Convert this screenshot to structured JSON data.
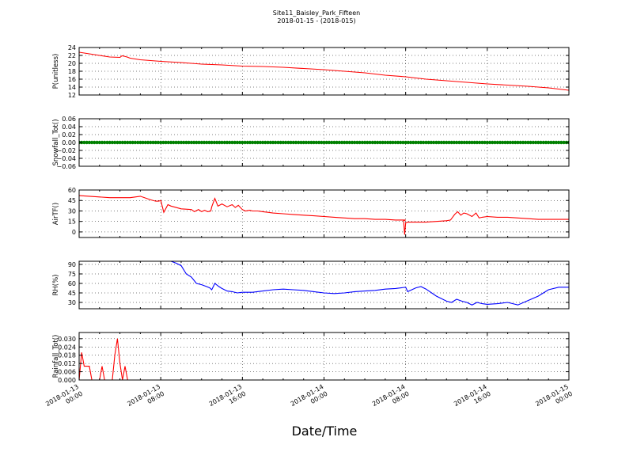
{
  "title": "Site11_Baisley_Park_Fifteen",
  "subtitle": "2018-01-15 - (2018-015)",
  "xlabel": "Date/Time",
  "x_ticks": [
    {
      "l1": "2018-01-13",
      "l2": "00:00"
    },
    {
      "l1": "2018-01-13",
      "l2": "08:00"
    },
    {
      "l1": "2018-01-13",
      "l2": "16:00"
    },
    {
      "l1": "2018-01-14",
      "l2": "00:00"
    },
    {
      "l1": "2018-01-14",
      "l2": "08:00"
    },
    {
      "l1": "2018-01-14",
      "l2": "16:00"
    },
    {
      "l1": "2018-01-15",
      "l2": "00:00"
    }
  ],
  "chart_data": [
    {
      "type": "line",
      "ylabel": "P(unitless)",
      "ylim": [
        12,
        24
      ],
      "yticks": [
        12,
        14,
        16,
        18,
        20,
        22,
        24
      ],
      "ytick_labels": [
        "12",
        "14",
        "16",
        "18",
        "20",
        "22",
        "24"
      ],
      "color": "#ff0000",
      "grid": true,
      "x": [
        0,
        1,
        2,
        3,
        4,
        4.2,
        4.4,
        4.7,
        5,
        6,
        8,
        10,
        12,
        14,
        16,
        18,
        20,
        22,
        24,
        26,
        28,
        30,
        32,
        34,
        36,
        38,
        40,
        42,
        44,
        46,
        48
      ],
      "y": [
        22.8,
        22.4,
        22.0,
        21.6,
        21.5,
        21.9,
        21.8,
        21.6,
        21.3,
        20.9,
        20.5,
        20.2,
        19.8,
        19.6,
        19.3,
        19.2,
        19.0,
        18.7,
        18.4,
        18.0,
        17.6,
        17.0,
        16.6,
        16.0,
        15.6,
        15.2,
        14.8,
        14.5,
        14.2,
        13.8,
        13.2
      ]
    },
    {
      "type": "scatter",
      "ylabel": "Snowfall_Tot()",
      "ylim": [
        -0.06,
        0.06
      ],
      "yticks": [
        -0.06,
        -0.04,
        -0.02,
        0,
        0.02,
        0.04,
        0.06
      ],
      "ytick_labels": [
        "−0.06",
        "−0.04",
        "−0.02",
        "0.00",
        "0.02",
        "0.04",
        "0.06"
      ],
      "color": "#008000",
      "grid": true,
      "note": "all values 0.00 every 15 minutes",
      "x_start": 0,
      "x_end": 48,
      "x_step": 0.25,
      "value": 0
    },
    {
      "type": "line",
      "ylabel": "AirTF()",
      "ylim": [
        -8,
        60
      ],
      "yticks": [
        0,
        15,
        30,
        45,
        60
      ],
      "ytick_labels": [
        "0",
        "15",
        "30",
        "45",
        "60"
      ],
      "color": "#ff0000",
      "grid": true,
      "x": [
        0,
        1,
        2,
        3,
        4,
        5,
        5.5,
        6,
        7,
        7.5,
        7.8,
        8,
        8.3,
        8.7,
        9,
        10,
        11,
        11.3,
        11.7,
        12,
        12.3,
        12.6,
        12.9,
        13,
        13.3,
        13.6,
        14,
        14.5,
        15,
        15.3,
        15.6,
        16,
        16.3,
        16.7,
        17,
        17.5,
        18,
        18.5,
        19,
        20,
        21,
        22,
        23,
        24,
        25,
        26,
        27,
        28,
        29,
        30,
        31,
        32,
        31.8,
        31.9,
        32.0,
        32.2,
        33,
        34,
        35,
        36,
        36.4,
        36.8,
        37.1,
        37.4,
        37.7,
        38,
        38.5,
        38.9,
        39.2,
        39.5,
        40,
        41,
        42,
        43,
        44,
        45,
        46,
        47,
        48
      ],
      "y": [
        52,
        51,
        50,
        49,
        49,
        49,
        50,
        51,
        46,
        44,
        44,
        45,
        28,
        39,
        37,
        33,
        32,
        29,
        32,
        29,
        31,
        29,
        30,
        36,
        48,
        37,
        40,
        36,
        39,
        35,
        38,
        32,
        30,
        31,
        30,
        30,
        29,
        28,
        27,
        26,
        25,
        24,
        23,
        22,
        21,
        20,
        19,
        19,
        18,
        18,
        17,
        17,
        16,
        -4,
        13,
        14,
        14,
        14,
        15,
        16,
        17,
        25,
        29,
        24,
        27,
        26,
        22,
        27,
        20,
        21,
        22,
        21,
        21,
        20,
        19,
        18,
        18,
        18,
        18
      ]
    },
    {
      "type": "line",
      "ylabel": "RH(%)",
      "ylim": [
        20,
        95
      ],
      "yticks": [
        30,
        45,
        60,
        75,
        90
      ],
      "ytick_labels": [
        "30",
        "45",
        "60",
        "75",
        "90"
      ],
      "color": "#0000ff",
      "grid": true,
      "x": [
        7.9,
        8.5,
        9,
        9.5,
        10,
        10.5,
        11,
        11.5,
        12,
        12.5,
        12.8,
        13,
        13.3,
        13.7,
        14,
        14.5,
        15,
        15.5,
        16,
        17,
        18,
        19,
        20,
        21,
        22,
        23,
        24,
        25,
        26,
        27,
        28,
        29,
        30,
        31,
        32,
        32.2,
        33,
        33.5,
        34,
        35,
        36,
        36.5,
        37,
        37.5,
        38,
        38.5,
        39,
        39.5,
        40,
        41,
        42,
        43,
        44,
        45,
        46,
        47,
        48
      ],
      "y": [
        95,
        95,
        95,
        92,
        88,
        75,
        70,
        60,
        58,
        55,
        53,
        50,
        60,
        55,
        52,
        48,
        47,
        45,
        46,
        46,
        48,
        50,
        51,
        50,
        49,
        47,
        45,
        44,
        45,
        47,
        48,
        49,
        51,
        52,
        54,
        47,
        53,
        55,
        51,
        40,
        32,
        30,
        35,
        32,
        30,
        26,
        30,
        28,
        27,
        28,
        30,
        26,
        33,
        40,
        50,
        54,
        54
      ]
    },
    {
      "type": "line",
      "ylabel": "Rainfall_Tot()",
      "ylim": [
        0,
        0.0345
      ],
      "yticks": [
        0,
        0.006,
        0.012,
        0.018,
        0.024,
        0.03
      ],
      "ytick_labels": [
        "0.000",
        "0.006",
        "0.012",
        "0.018",
        "0.024",
        "0.030"
      ],
      "color": "#ff0000",
      "grid": true,
      "x": [
        0,
        0.25,
        0.5,
        0.75,
        1,
        1.25,
        1.5,
        1.75,
        2,
        2.25,
        2.5,
        2.75,
        3,
        3.25,
        3.5,
        3.75,
        4,
        4.25,
        4.5,
        4.75,
        5,
        5.25,
        48
      ],
      "y": [
        0,
        0.02,
        0.01,
        0.01,
        0.01,
        0,
        0,
        0,
        0,
        0.01,
        0,
        0,
        0,
        0,
        0.018,
        0.03,
        0.012,
        0,
        0.01,
        0,
        0,
        0,
        0
      ]
    }
  ]
}
